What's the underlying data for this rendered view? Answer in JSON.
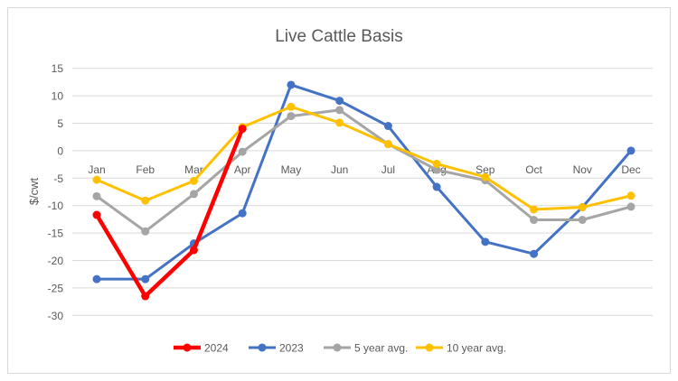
{
  "chart_data": {
    "type": "line",
    "title": "Live Cattle Basis",
    "xlabel": "",
    "ylabel": "$/cwt",
    "ylim": [
      -30,
      15
    ],
    "yticks": [
      15,
      10,
      5,
      0,
      -5,
      -10,
      -15,
      -20,
      -25,
      -30
    ],
    "grid": true,
    "legend_position": "bottom",
    "categories": [
      "Jan",
      "Feb",
      "Mar",
      "Apr",
      "May",
      "Jun",
      "Jul",
      "Aug",
      "Sep",
      "Oct",
      "Nov",
      "Dec"
    ],
    "series": [
      {
        "name": "2024",
        "color": "#FF0000",
        "values": [
          -11.7,
          -26.5,
          -18.1,
          4.0,
          null,
          null,
          null,
          null,
          null,
          null,
          null,
          null
        ]
      },
      {
        "name": "2023",
        "color": "#4472C4",
        "values": [
          -23.4,
          -23.4,
          -16.9,
          -11.4,
          12.0,
          9.1,
          4.5,
          -6.6,
          -16.6,
          -18.8,
          -10.3,
          0.0
        ]
      },
      {
        "name": "5 year avg.",
        "color": "#A5A5A5",
        "values": [
          -8.3,
          -14.7,
          -7.9,
          -0.2,
          6.3,
          7.4,
          1.2,
          -3.5,
          -5.4,
          -12.6,
          -12.6,
          -10.2
        ]
      },
      {
        "name": "10 year avg.",
        "color": "#FFC000",
        "values": [
          -5.3,
          -9.1,
          -5.5,
          4.3,
          8.0,
          5.1,
          1.2,
          -2.4,
          -4.8,
          -10.7,
          -10.3,
          -8.2
        ]
      }
    ]
  }
}
